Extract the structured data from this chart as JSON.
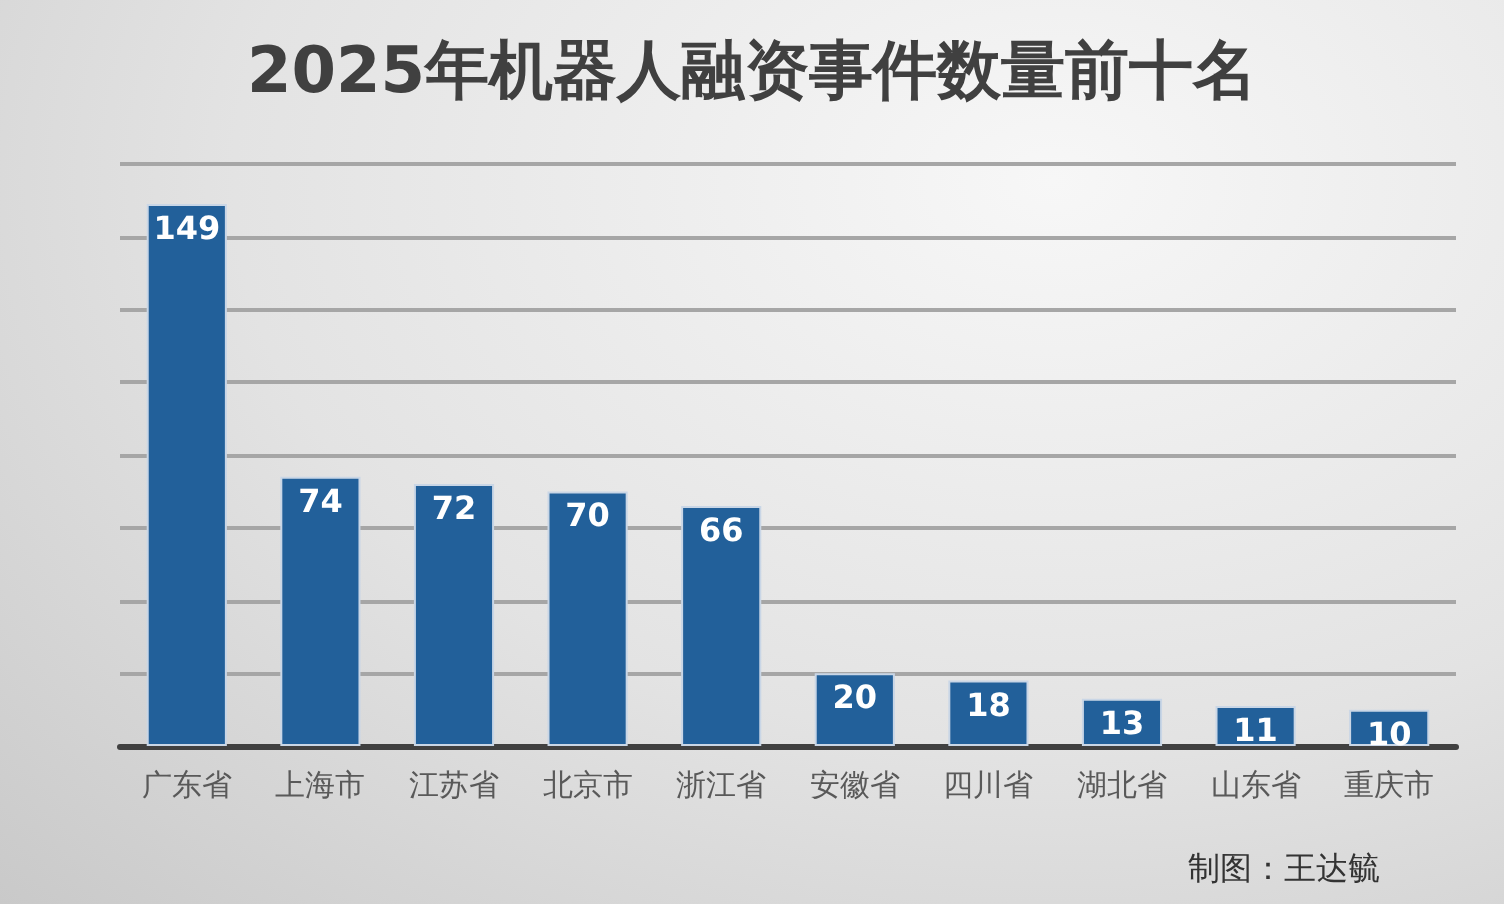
{
  "chart_data": {
    "type": "bar",
    "title": "2025年机器人融资事件数量前十名",
    "categories": [
      "广东省",
      "上海市",
      "江苏省",
      "北京市",
      "浙江省",
      "安徽省",
      "四川省",
      "湖北省",
      "山东省",
      "重庆市"
    ],
    "values": [
      149,
      74,
      72,
      70,
      66,
      20,
      18,
      13,
      11,
      10
    ],
    "color": "#22609a",
    "ylim": [
      0,
      160
    ],
    "yticks": [
      {
        "value": 0,
        "label": null
      },
      {
        "value": 20,
        "label": null
      },
      {
        "value": 40,
        "label": null
      },
      {
        "value": 60,
        "label": null
      },
      {
        "value": 80,
        "label": null
      },
      {
        "value": 100,
        "label": null
      },
      {
        "value": 120,
        "label": null
      },
      {
        "value": 140,
        "label": null
      },
      {
        "value": 160,
        "label": null
      }
    ],
    "grid": "y",
    "tick_labels": "x",
    "data_labels": true,
    "annotations": [
      "制图：王达毓"
    ]
  }
}
